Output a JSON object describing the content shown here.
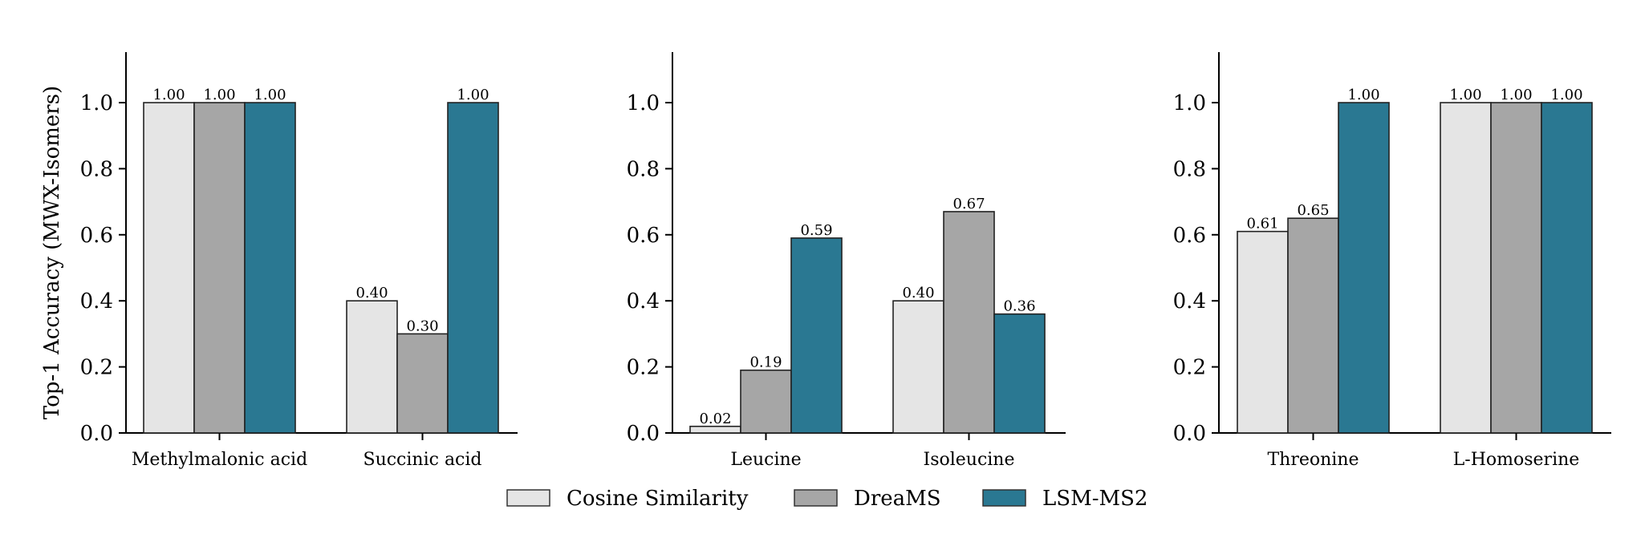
{
  "chart_data": {
    "type": "bar",
    "ylabel": "Top-1 Accuracy (MWX-Isomers)",
    "ylim": [
      0,
      1.15
    ],
    "yticks": [
      "0.0",
      "0.2",
      "0.4",
      "0.6",
      "0.8",
      "1.0"
    ],
    "legend": {
      "placement": "bottom-center",
      "entries": [
        {
          "name": "Cosine Similarity",
          "color": "#e5e5e5"
        },
        {
          "name": "DreaMS",
          "color": "#a6a6a6"
        },
        {
          "name": "LSM-MS2",
          "color": "#2a7892"
        }
      ]
    },
    "panels": [
      {
        "categories": [
          "Methylmalonic acid",
          "Succinic acid"
        ],
        "series": [
          {
            "name": "Cosine Similarity",
            "values": [
              1.0,
              0.4
            ],
            "labels": [
              "1.00",
              "0.40"
            ]
          },
          {
            "name": "DreaMS",
            "values": [
              1.0,
              0.3
            ],
            "labels": [
              "1.00",
              "0.30"
            ]
          },
          {
            "name": "LSM-MS2",
            "values": [
              1.0,
              1.0
            ],
            "labels": [
              "1.00",
              "1.00"
            ]
          }
        ]
      },
      {
        "categories": [
          "Leucine",
          "Isoleucine"
        ],
        "series": [
          {
            "name": "Cosine Similarity",
            "values": [
              0.02,
              0.4
            ],
            "labels": [
              "0.02",
              "0.40"
            ]
          },
          {
            "name": "DreaMS",
            "values": [
              0.19,
              0.67
            ],
            "labels": [
              "0.19",
              "0.67"
            ]
          },
          {
            "name": "LSM-MS2",
            "values": [
              0.59,
              0.36
            ],
            "labels": [
              "0.59",
              "0.36"
            ]
          }
        ]
      },
      {
        "categories": [
          "Threonine",
          "L-Homoserine"
        ],
        "series": [
          {
            "name": "Cosine Similarity",
            "values": [
              0.61,
              1.0
            ],
            "labels": [
              "0.61",
              "1.00"
            ]
          },
          {
            "name": "DreaMS",
            "values": [
              0.65,
              1.0
            ],
            "labels": [
              "0.65",
              "1.00"
            ]
          },
          {
            "name": "LSM-MS2",
            "values": [
              1.0,
              1.0
            ],
            "labels": [
              "1.00",
              "1.00"
            ]
          }
        ]
      }
    ]
  }
}
